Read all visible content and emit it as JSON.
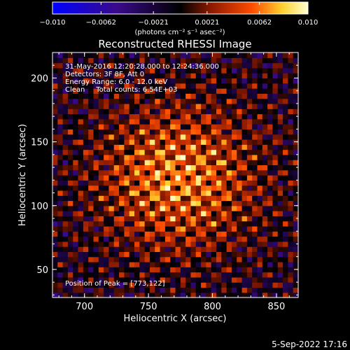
{
  "chart_data": {
    "type": "heatmap",
    "title": "Reconstructed RHESSI Image",
    "xlabel": "Heliocentric X (arcsec)",
    "ylabel": "Heliocentric Y (arcsec)",
    "xlim": [
      675,
      867
    ],
    "ylim": [
      28,
      220
    ],
    "x_ticks": [
      "700",
      "750",
      "800",
      "850"
    ],
    "y_ticks": [
      "50",
      "100",
      "150",
      "200"
    ],
    "colorbar": {
      "range": [
        -0.01,
        0.01
      ],
      "tick_labels": [
        "−0.010",
        "−0.0062",
        "−0.0021",
        "0.0021",
        "0.0062",
        "0.010"
      ],
      "unit_label": "(photons cm⁻² s⁻¹ asec⁻²)",
      "colors": [
        "#0000ff",
        "#3a0a8c",
        "#000000",
        "#8c1a00",
        "#ff4b00",
        "#ffd030",
        "#ffffd0"
      ]
    },
    "annotations": [
      "31-May-2016 12:20:28.000 to 12:24:36.000",
      "Detectors: 3F 8F, Att 0",
      "Energy Range: 6.0 - 12.0 keV",
      "Clean     Total counts: 6.54E+03"
    ],
    "peak_label": "Position of Peak = [773,122]",
    "peak": [
      773,
      122
    ],
    "timestamp": "5-Sep-2022 17:16"
  }
}
